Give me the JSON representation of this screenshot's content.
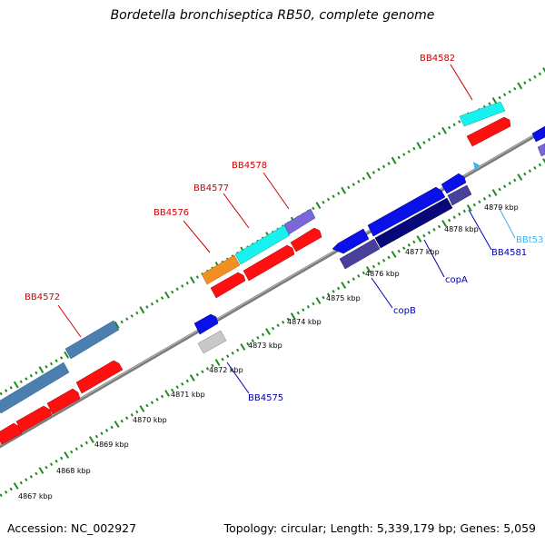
{
  "title": "Bordetella bronchiseptica RB50, complete genome",
  "footer": {
    "accession": "Accession: NC_002927",
    "summary": "Topology: circular; Length: 5,339,179 bp; Genes: 5,059"
  },
  "colors": {
    "backbone": "#8c8c8c",
    "tick": "#1e8a1e",
    "label_red": "#cc0000",
    "label_blue": "#0000aa",
    "label_cyan": "#3cb4f0"
  },
  "kbp_labels": [
    "4867 kbp",
    "4868 kbp",
    "4869 kbp",
    "4870 kbp",
    "4871 kbp",
    "4872 kbp",
    "4873 kbp",
    "4874 kbp",
    "4875 kbp",
    "4876 kbp",
    "4877 kbp",
    "4878 kbp",
    "4879 kbp"
  ],
  "gene_labels": [
    "BB4572",
    "BB4576",
    "BB4577",
    "BB4578",
    "BB4582",
    "BB4575",
    "copB",
    "copA",
    "BB4581",
    "BBt53"
  ]
}
